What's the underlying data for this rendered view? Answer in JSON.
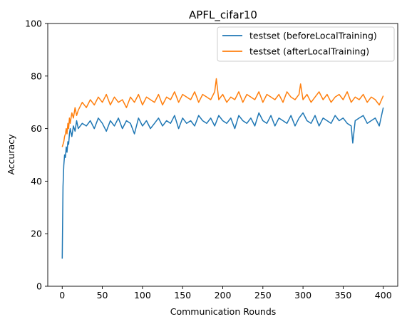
{
  "chart_data": {
    "type": "line",
    "title": "APFL_cifar10",
    "xlabel": "Communication Rounds",
    "ylabel": "Accuracy",
    "xlim": [
      -18,
      418
    ],
    "ylim": [
      0,
      100
    ],
    "x_ticks": [
      0,
      50,
      100,
      150,
      200,
      250,
      300,
      350,
      400
    ],
    "y_ticks": [
      0,
      20,
      40,
      60,
      80,
      100
    ],
    "grid": false,
    "legend_position": "top-right",
    "x_range": [
      0,
      400
    ],
    "series": [
      {
        "name": "testset (beforeLocalTraining)",
        "color": "#1f77b4",
        "x": [
          0,
          1,
          2,
          3,
          4,
          5,
          6,
          7,
          8,
          9,
          10,
          12,
          14,
          16,
          18,
          20,
          25,
          30,
          35,
          40,
          45,
          50,
          55,
          60,
          65,
          70,
          75,
          80,
          85,
          90,
          95,
          100,
          105,
          110,
          115,
          120,
          125,
          130,
          135,
          140,
          145,
          150,
          155,
          160,
          165,
          170,
          175,
          180,
          185,
          190,
          195,
          200,
          205,
          210,
          215,
          220,
          225,
          230,
          235,
          240,
          245,
          250,
          255,
          260,
          265,
          270,
          275,
          280,
          285,
          290,
          295,
          300,
          305,
          310,
          315,
          320,
          325,
          330,
          335,
          340,
          345,
          350,
          355,
          360,
          362,
          365,
          370,
          375,
          380,
          385,
          390,
          395,
          400
        ],
        "values": [
          10.5,
          38,
          46,
          50,
          49,
          53,
          51,
          55,
          54,
          58,
          60,
          57,
          61,
          59,
          63,
          60,
          62,
          61,
          63,
          60,
          64,
          62,
          59,
          63,
          61,
          64,
          60,
          63,
          62,
          58,
          64,
          61,
          63,
          60,
          62,
          64,
          61,
          63,
          62,
          65,
          60,
          64,
          62,
          63,
          61,
          65,
          63,
          62,
          64,
          61,
          65,
          63,
          62,
          64,
          60,
          65,
          63,
          62,
          64,
          61,
          66,
          63,
          62,
          65,
          61,
          64,
          63,
          62,
          65,
          61,
          64,
          66,
          63,
          62,
          65,
          61,
          64,
          63,
          62,
          65,
          63,
          64,
          62,
          61,
          54.5,
          63,
          64,
          65,
          62,
          63,
          64,
          61,
          68
        ]
      },
      {
        "name": "testset (afterLocalTraining)",
        "color": "#ff7f0e",
        "x": [
          0,
          1,
          2,
          3,
          4,
          5,
          6,
          7,
          8,
          9,
          10,
          12,
          14,
          16,
          18,
          20,
          25,
          30,
          35,
          40,
          45,
          50,
          55,
          60,
          65,
          70,
          75,
          80,
          85,
          90,
          95,
          100,
          105,
          110,
          115,
          120,
          125,
          130,
          135,
          140,
          145,
          150,
          155,
          160,
          165,
          170,
          175,
          180,
          185,
          190,
          192,
          195,
          200,
          205,
          210,
          215,
          220,
          225,
          230,
          235,
          240,
          245,
          250,
          255,
          260,
          265,
          270,
          275,
          280,
          285,
          290,
          295,
          297,
          300,
          305,
          310,
          315,
          320,
          325,
          330,
          335,
          340,
          345,
          350,
          355,
          360,
          365,
          370,
          375,
          380,
          385,
          390,
          395,
          400
        ],
        "values": [
          53,
          54,
          55,
          57,
          58,
          60,
          58,
          62,
          60,
          64,
          62,
          66,
          64,
          68,
          65,
          67,
          70,
          68,
          71,
          69,
          72,
          70,
          73,
          69,
          72,
          70,
          71,
          68,
          72,
          70,
          73,
          69,
          72,
          71,
          70,
          73,
          69,
          72,
          71,
          74,
          70,
          73,
          72,
          71,
          74,
          70,
          73,
          72,
          71,
          74,
          79,
          71,
          73,
          70,
          72,
          71,
          74,
          70,
          73,
          72,
          71,
          74,
          70,
          73,
          72,
          71,
          73,
          70,
          74,
          72,
          71,
          73,
          77,
          71,
          73,
          70,
          72,
          74,
          71,
          73,
          70,
          72,
          73,
          71,
          74,
          70,
          72,
          71,
          73,
          70,
          72,
          71,
          69,
          72.5
        ]
      }
    ]
  }
}
